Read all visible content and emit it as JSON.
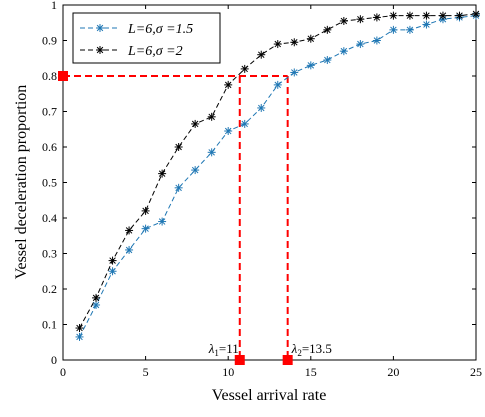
{
  "chart_data": {
    "type": "line",
    "xlabel": "Vessel arrival rate",
    "ylabel": "Vessel deceleration proportion",
    "xlim": [
      0,
      25
    ],
    "ylim": [
      0,
      1
    ],
    "x_ticks": [
      0,
      5,
      10,
      15,
      20,
      25
    ],
    "y_ticks": [
      0,
      0.1,
      0.2,
      0.3,
      0.4,
      0.5,
      0.6,
      0.7,
      0.8,
      0.9,
      1
    ],
    "grid": false,
    "legend_position": "top-left",
    "series": [
      {
        "name": "L=6,σ =1.5",
        "color": "#1f77b4",
        "marker": "asterisk",
        "line": "dashed",
        "x": [
          1,
          2,
          3,
          4,
          5,
          6,
          7,
          8,
          9,
          10,
          11,
          12,
          13,
          14,
          15,
          16,
          17,
          18,
          19,
          20,
          21,
          22,
          23,
          24,
          25
        ],
        "y": [
          0.065,
          0.155,
          0.25,
          0.31,
          0.37,
          0.39,
          0.485,
          0.535,
          0.585,
          0.645,
          0.665,
          0.71,
          0.775,
          0.81,
          0.83,
          0.845,
          0.87,
          0.89,
          0.9,
          0.93,
          0.93,
          0.945,
          0.96,
          0.965,
          0.97
        ]
      },
      {
        "name": "L=6,σ =2",
        "color": "#000000",
        "marker": "asterisk",
        "line": "dashed",
        "x": [
          1,
          2,
          3,
          4,
          5,
          6,
          7,
          8,
          9,
          10,
          11,
          12,
          13,
          14,
          15,
          16,
          17,
          18,
          19,
          20,
          21,
          22,
          23,
          24,
          25
        ],
        "y": [
          0.09,
          0.175,
          0.28,
          0.365,
          0.42,
          0.525,
          0.6,
          0.665,
          0.685,
          0.775,
          0.82,
          0.86,
          0.89,
          0.895,
          0.905,
          0.93,
          0.955,
          0.96,
          0.965,
          0.97,
          0.97,
          0.97,
          0.97,
          0.97,
          0.975
        ]
      }
    ],
    "annotations": {
      "guide_y": 0.8,
      "lambda1": {
        "label": "λ1=11",
        "sym": "λ",
        "sub": "1",
        "rest": "=11",
        "x": 10.7
      },
      "lambda2": {
        "label": "λ2=13.5",
        "sym": "λ",
        "sub": "2",
        "rest": "=13.5",
        "x": 13.6
      },
      "color": "#ff0000"
    }
  }
}
